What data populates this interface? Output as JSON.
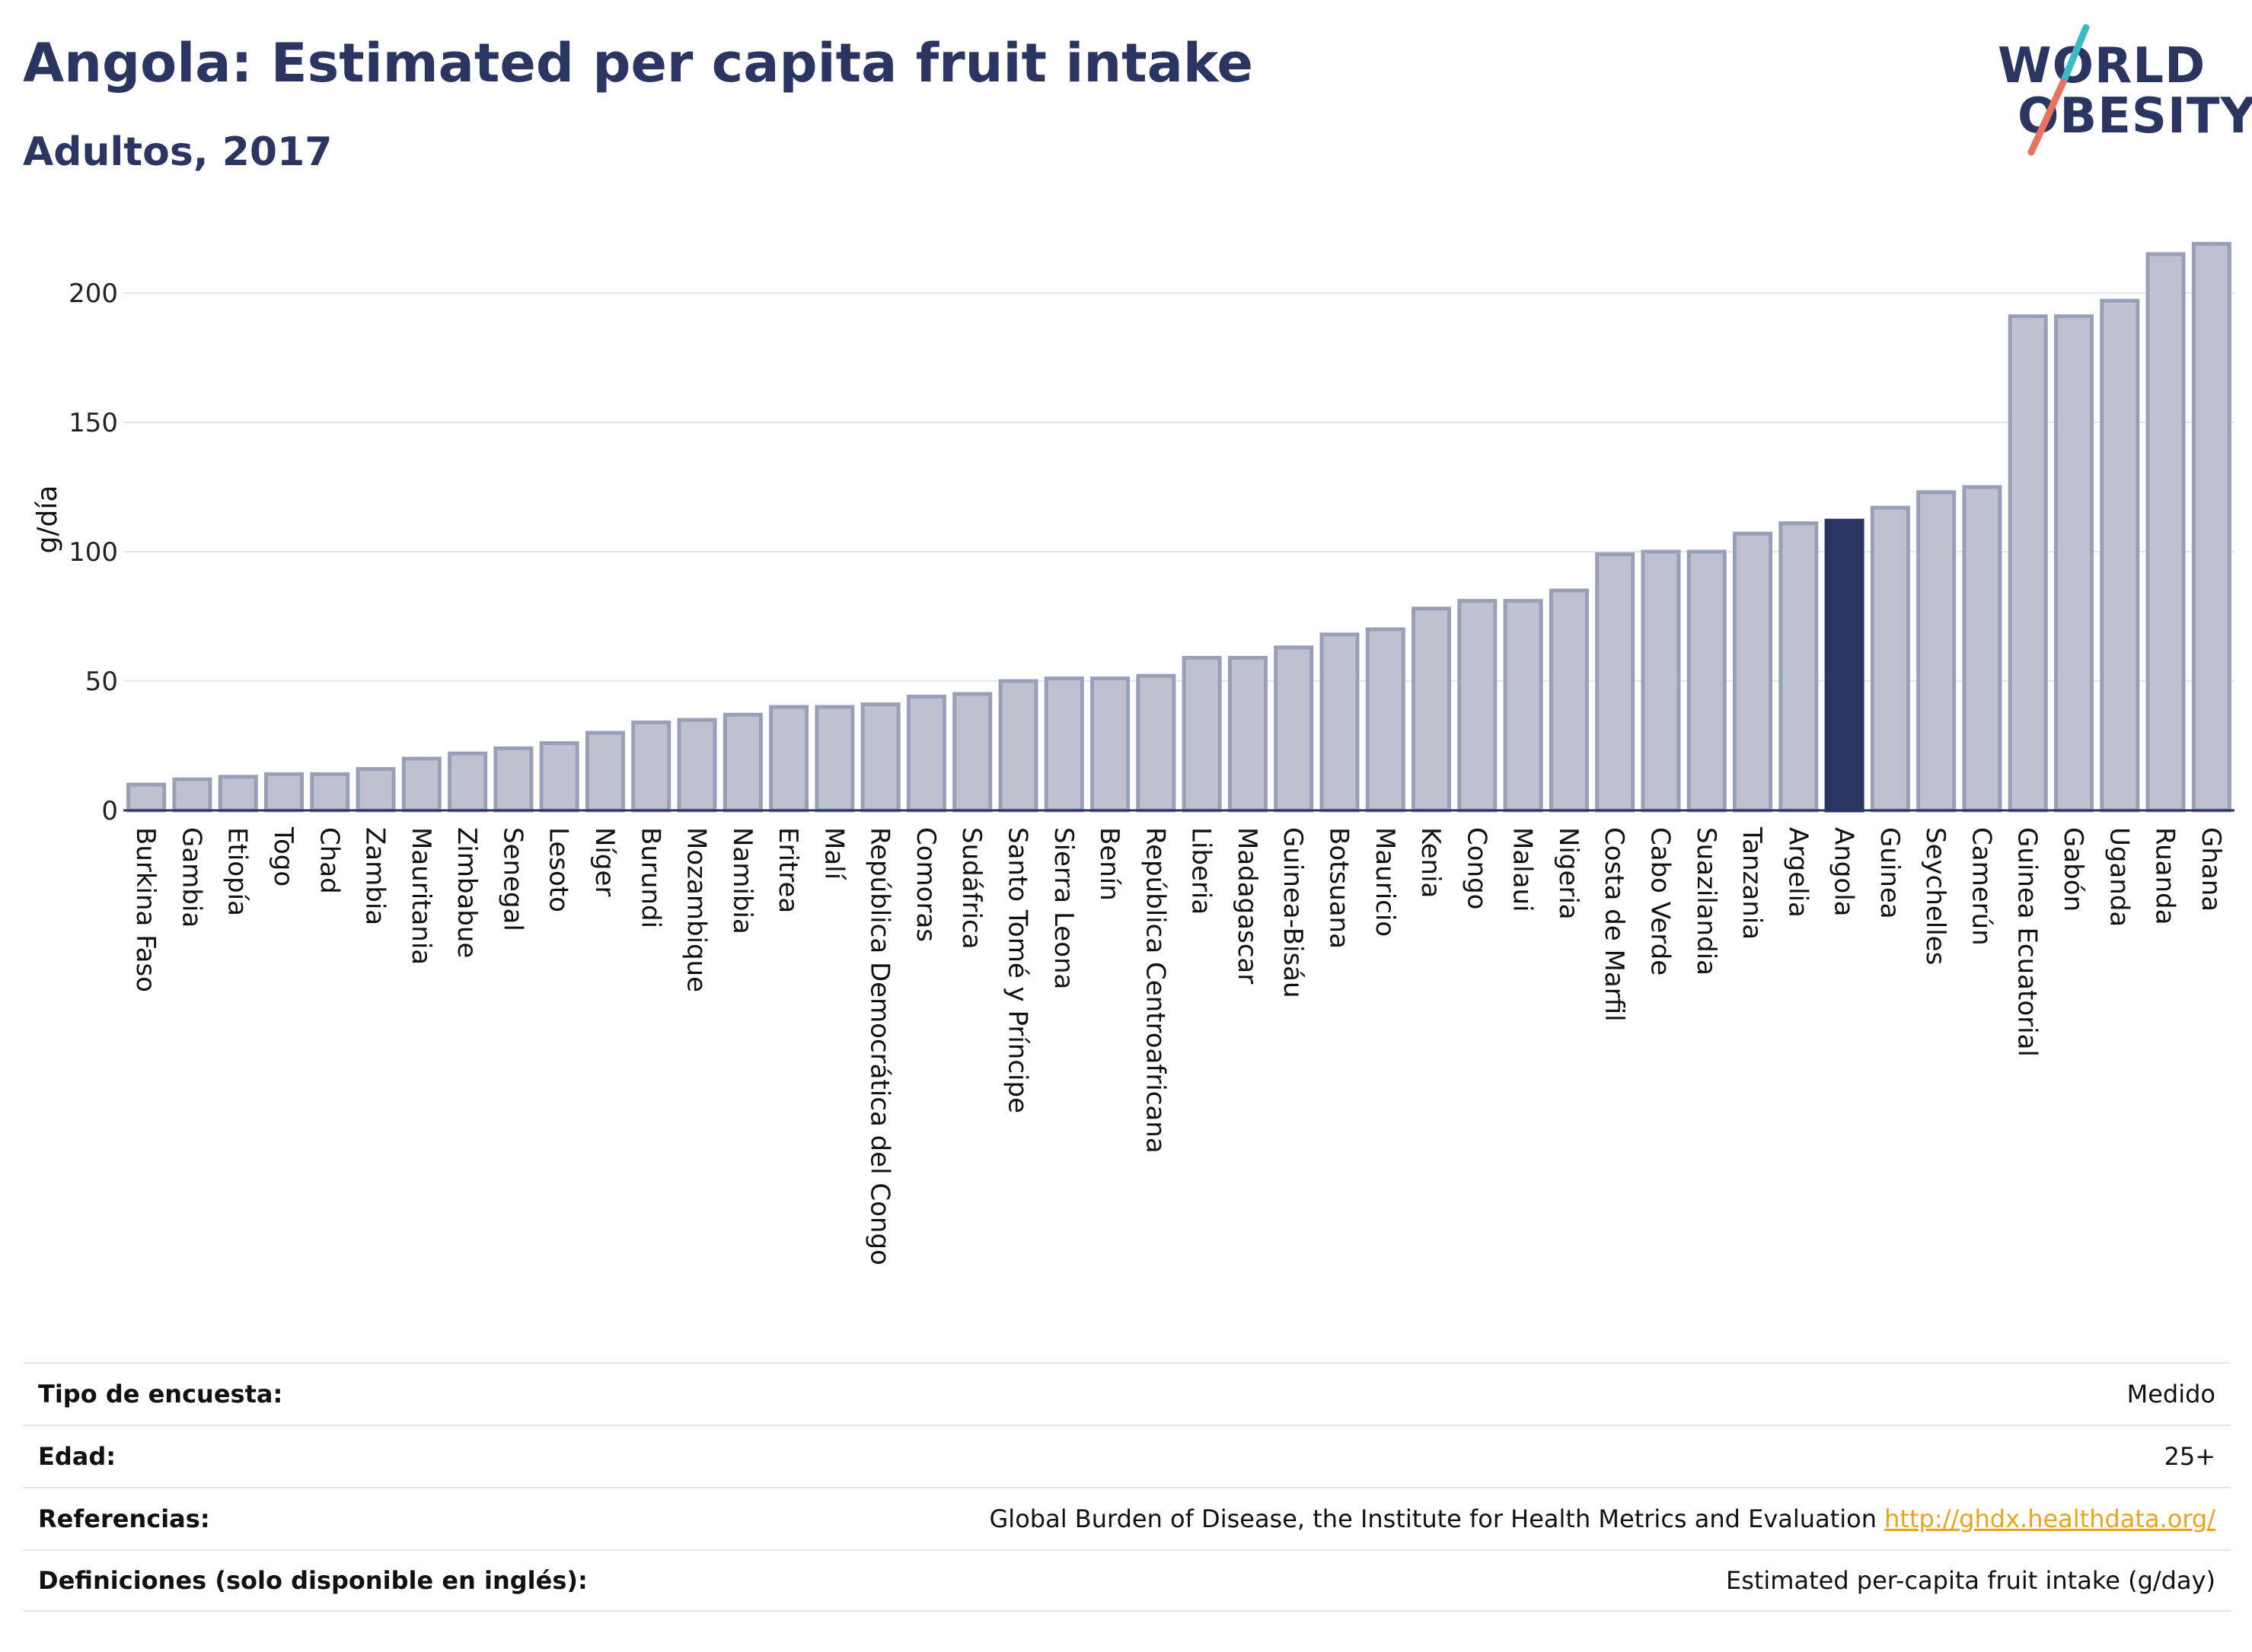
{
  "header": {
    "title": "Angola: Estimated per capita fruit intake",
    "subtitle": "Adultos, 2017"
  },
  "logo": {
    "line1": "WORLD",
    "line2": "OBESITY"
  },
  "colors": {
    "bar": "#bec1d0",
    "bar_stroke": "#9a9fb8",
    "highlight": "#2b3561",
    "text": "#2b3561",
    "grid": "#e6e6ea",
    "logo_teal": "#3bb9c4",
    "logo_red": "#e8735f"
  },
  "chart_data": {
    "type": "bar",
    "ylabel": "g/día",
    "ylim": [
      0,
      225
    ],
    "yticks": [
      0,
      50,
      100,
      150,
      200
    ],
    "highlight": "Angola",
    "grid": true,
    "categories": [
      "Burkina Faso",
      "Gambia",
      "Etiopía",
      "Togo",
      "Chad",
      "Zambia",
      "Mauritania",
      "Zimbabue",
      "Senegal",
      "Lesoto",
      "Níger",
      "Burundi",
      "Mozambique",
      "Namibia",
      "Eritrea",
      "Malí",
      "República Democrática del Congo",
      "Comoras",
      "Sudáfrica",
      "Santo Tomé y Príncipe",
      "Sierra Leona",
      "Benín",
      "República Centroafricana",
      "Liberia",
      "Madagascar",
      "Guinea-Bisáu",
      "Botsuana",
      "Mauricio",
      "Kenia",
      "Congo",
      "Malaui",
      "Nigeria",
      "Costa de Marfil",
      "Cabo Verde",
      "Suazilandia",
      "Tanzania",
      "Argelia",
      "Angola",
      "Guinea",
      "Seychelles",
      "Camerún",
      "Guinea Ecuatorial",
      "Gabón",
      "Uganda",
      "Ruanda",
      "Ghana"
    ],
    "values": [
      10,
      12,
      13,
      14,
      14,
      16,
      20,
      22,
      24,
      26,
      30,
      34,
      35,
      37,
      40,
      40,
      41,
      44,
      45,
      50,
      51,
      51,
      52,
      59,
      59,
      63,
      68,
      70,
      78,
      81,
      81,
      85,
      99,
      100,
      100,
      107,
      111,
      112,
      117,
      123,
      125,
      191,
      191,
      197,
      215,
      219
    ]
  },
  "info": {
    "rows": [
      {
        "label": "Tipo de encuesta:",
        "value": "Medido"
      },
      {
        "label": "Edad:",
        "value": "25+"
      },
      {
        "label": "Referencias:",
        "value": "Global Burden of Disease, the Institute for Health Metrics and Evaluation ",
        "link": "http://ghdx.healthdata.org/"
      },
      {
        "label": "Definiciones (solo disponible en inglés):",
        "value": "Estimated per-capita fruit intake (g/day)"
      }
    ]
  }
}
